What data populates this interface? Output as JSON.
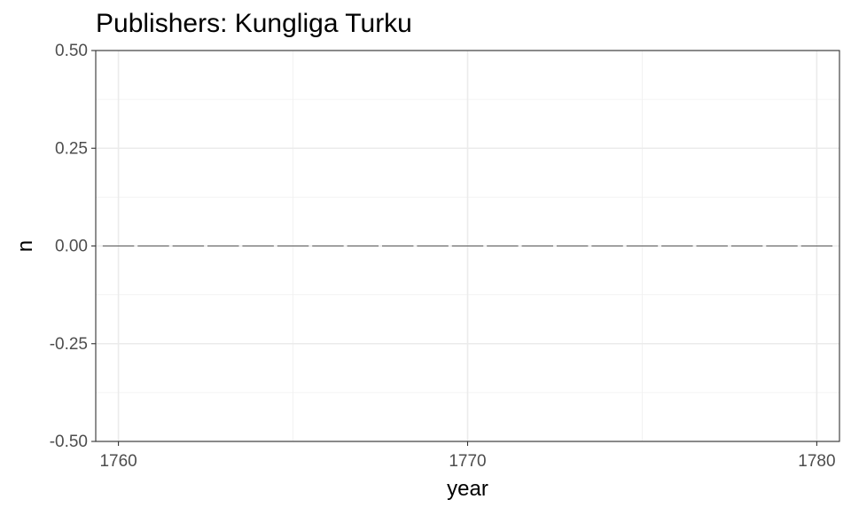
{
  "chart_data": {
    "type": "bar",
    "title": "Publishers: Kungliga Turku",
    "xlabel": "year",
    "ylabel": "n",
    "xlim": [
      1759.35,
      1780.65
    ],
    "ylim": [
      -0.5,
      0.5
    ],
    "x_ticks": [
      1760,
      1770,
      1780
    ],
    "x_tick_labels": [
      "1760",
      "1770",
      "1780"
    ],
    "y_ticks": [
      -0.5,
      -0.25,
      0,
      0.25,
      0.5
    ],
    "y_tick_labels": [
      "-0.50",
      "-0.25",
      "0.00",
      "0.25",
      "0.50"
    ],
    "grid": true,
    "legend": "none",
    "x": [
      1760,
      1761,
      1762,
      1763,
      1764,
      1765,
      1766,
      1767,
      1768,
      1769,
      1770,
      1771,
      1772,
      1773,
      1774,
      1775,
      1776,
      1777,
      1778,
      1779,
      1780
    ],
    "values": [
      0,
      0,
      0,
      0,
      0,
      0,
      0,
      0,
      0,
      0,
      0,
      0,
      0,
      0,
      0,
      0,
      0,
      0,
      0,
      0,
      0
    ],
    "bar_color": "#595959"
  }
}
